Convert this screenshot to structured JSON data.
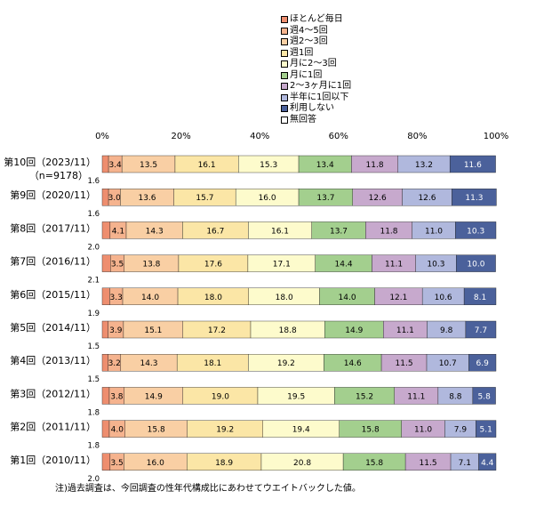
{
  "chart_data": {
    "type": "bar",
    "orientation": "horizontal",
    "stacked": true,
    "xlim": [
      0,
      100
    ],
    "x_ticks": [
      "0%",
      "20%",
      "40%",
      "60%",
      "80%",
      "100%"
    ],
    "categories": [
      "第10回（2023/11）",
      "第9回（2020/11）",
      "第8回（2017/11）",
      "第7回（2016/11）",
      "第6回（2015/11）",
      "第5回（2014/11）",
      "第4回（2013/11）",
      "第3回（2012/11）",
      "第2回（2011/11）",
      "第1回（2010/11）"
    ],
    "category_notes": [
      "（n=9178）",
      "",
      "",
      "",
      "",
      "",
      "",
      "",
      "",
      ""
    ],
    "series": [
      {
        "name": "ほとんど毎日",
        "color": "#ee8e6f",
        "values": [
          1.6,
          1.6,
          2.0,
          2.1,
          1.9,
          1.5,
          1.5,
          1.8,
          1.8,
          2.0
        ]
      },
      {
        "name": "週4～5回",
        "color": "#f5b38e",
        "values": [
          3.4,
          3.0,
          4.1,
          3.5,
          3.3,
          3.9,
          3.2,
          3.8,
          4.0,
          3.5
        ]
      },
      {
        "name": "週2～3回",
        "color": "#f9cfa4",
        "values": [
          13.5,
          13.6,
          14.3,
          13.8,
          14.0,
          15.1,
          14.3,
          14.9,
          15.8,
          16.0
        ]
      },
      {
        "name": "週1回",
        "color": "#fbe6a6",
        "values": [
          16.1,
          15.7,
          16.7,
          17.6,
          18.0,
          17.2,
          18.1,
          19.0,
          19.2,
          18.9
        ]
      },
      {
        "name": "月に2～3回",
        "color": "#fdfbcc",
        "values": [
          15.3,
          16.0,
          16.1,
          17.1,
          18.0,
          18.8,
          19.2,
          19.5,
          19.4,
          20.8
        ]
      },
      {
        "name": "月に1回",
        "color": "#a3cf8e",
        "values": [
          13.4,
          13.7,
          13.7,
          14.4,
          14.0,
          14.9,
          14.6,
          15.2,
          15.8,
          15.8
        ]
      },
      {
        "name": "2～3ヶ月に1回",
        "color": "#c7a9cd",
        "values": [
          11.8,
          12.6,
          11.8,
          11.1,
          12.1,
          11.1,
          11.5,
          11.1,
          11.0,
          11.5
        ]
      },
      {
        "name": "半年に1回以下",
        "color": "#b0b8dd",
        "values": [
          13.2,
          12.6,
          11.0,
          10.3,
          10.6,
          9.8,
          10.7,
          8.8,
          7.9,
          7.1
        ]
      },
      {
        "name": "利用しない",
        "color": "#4b619b",
        "values": [
          11.6,
          11.3,
          10.3,
          10.0,
          8.1,
          7.7,
          6.9,
          5.8,
          5.1,
          4.4
        ]
      },
      {
        "name": "無回答",
        "color": "#ffffff",
        "values": [
          0,
          0,
          0,
          0,
          0,
          0,
          0,
          0,
          0,
          0
        ]
      }
    ],
    "legend_position": "top",
    "grid": false
  },
  "note": "注)過去調査は、今回調査の性年代構成比にあわせてウエイトバックした値。"
}
